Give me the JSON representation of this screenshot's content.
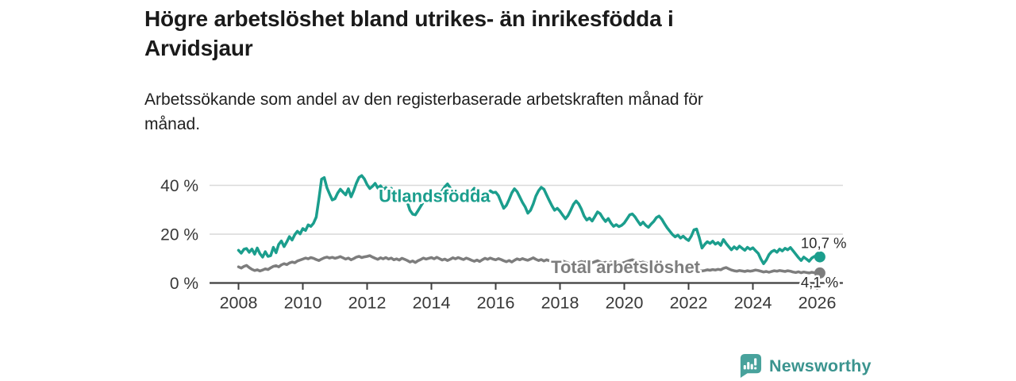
{
  "page": {
    "background": "#ffffff"
  },
  "header": {
    "title_lines": [
      "Högre arbetslöshet bland utrikes- än inrikesfödda i",
      "Arvidsjaur"
    ],
    "subtitle_lines": [
      "Arbetssökande som andel av den registerbaserade arbetskraften månad för",
      "månad."
    ]
  },
  "chart_data": {
    "type": "line",
    "title": "Högre arbetslöshet bland utrikes- än inrikesfödda i Arvidsjaur",
    "subtitle": "Arbetssökande som andel av den registerbaserade arbetskraften månad för månad.",
    "grid": "horizontal",
    "x": {
      "start_year": 2008,
      "start_month": 1,
      "step_months": 1
    },
    "x_ticks": [
      2008,
      2010,
      2012,
      2014,
      2016,
      2018,
      2020,
      2022,
      2024,
      2026
    ],
    "xlim": [
      2007.1,
      2026.8
    ],
    "ylim": [
      0,
      46
    ],
    "y_ticks": [
      {
        "value": 0,
        "label": "0 %"
      },
      {
        "value": 20,
        "label": "20 %"
      },
      {
        "value": 40,
        "label": "40 %"
      }
    ],
    "colors": {
      "grid": "#d9d9d9",
      "axis": "#3f3f3f",
      "tick_text": "#383838",
      "value_text": "#2b2b2b"
    },
    "series": [
      {
        "id": "utlandsfodda",
        "name": "Utlandsfödda",
        "color": "#1b9e8d",
        "end_value": 10.7,
        "end_label": "10,7 %",
        "end_label_offset": [
          -24,
          -11
        ],
        "label_pos": {
          "x_year": 2012.36,
          "y_pct": 33.2
        },
        "values": [
          13.4,
          12.2,
          13.8,
          14.1,
          12.6,
          13.9,
          11.8,
          14.3,
          12.0,
          10.6,
          12.8,
          10.9,
          11.2,
          14.6,
          12.4,
          15.8,
          17.2,
          14.9,
          16.8,
          19.0,
          17.6,
          19.8,
          21.2,
          20.1,
          22.3,
          21.5,
          23.8,
          23.2,
          24.5,
          27.0,
          34.5,
          42.5,
          43.2,
          39.0,
          36.5,
          34.0,
          34.5,
          36.8,
          38.4,
          37.2,
          36.1,
          38.6,
          35.3,
          37.8,
          40.9,
          43.3,
          44.0,
          42.6,
          40.3,
          38.7,
          39.6,
          40.8,
          38.9,
          39.8,
          38.2,
          39.1,
          37.6,
          38.8,
          37.2,
          36.4,
          37.8,
          36.4,
          35.2,
          33.1,
          29.8,
          28.2,
          27.9,
          29.6,
          31.4,
          33.2,
          34.6,
          35.4,
          36.8,
          35.6,
          37.2,
          36.1,
          37.8,
          39.4,
          40.6,
          39.0,
          37.2,
          36.0,
          36.8,
          35.8,
          36.4,
          37.6,
          36.2,
          37.4,
          38.8,
          37.0,
          35.6,
          36.6,
          35.0,
          36.2,
          37.8,
          37.0,
          37.2,
          35.8,
          33.1,
          30.6,
          31.8,
          34.2,
          36.9,
          38.6,
          37.4,
          35.2,
          33.0,
          31.2,
          28.6,
          29.8,
          32.4,
          35.6,
          37.8,
          39.2,
          38.4,
          36.1,
          33.8,
          31.6,
          29.8,
          30.6,
          29.4,
          27.8,
          26.3,
          27.6,
          29.8,
          32.2,
          33.6,
          32.4,
          30.2,
          27.4,
          25.8,
          26.6,
          25.4,
          27.2,
          29.1,
          28.4,
          26.6,
          25.2,
          26.4,
          24.6,
          23.2,
          23.9,
          23.1,
          23.6,
          24.6,
          26.2,
          27.9,
          28.3,
          27.1,
          25.4,
          23.8,
          24.9,
          23.6,
          22.8,
          24.1,
          25.2,
          26.8,
          27.4,
          26.1,
          24.3,
          22.6,
          21.2,
          19.8,
          18.9,
          19.6,
          18.4,
          19.2,
          18.1,
          17.4,
          19.2,
          21.8,
          22.1,
          18.6,
          14.3,
          15.8,
          16.9,
          16.2,
          17.1,
          15.9,
          16.6,
          15.4,
          17.8,
          16.2,
          14.9,
          13.6,
          14.8,
          13.9,
          15.1,
          14.2,
          13.4,
          14.6,
          13.8,
          14.4,
          13.2,
          12.1,
          9.8,
          7.9,
          9.4,
          11.6,
          12.8,
          13.4,
          12.6,
          13.9,
          13.1,
          14.2,
          13.6,
          14.5,
          13.2,
          11.8,
          10.4,
          9.2,
          10.6,
          9.8,
          8.9,
          10.2,
          10.9,
          10.5,
          10.7
        ]
      },
      {
        "id": "total-arbetsloshet",
        "name": "Total arbetslöshet",
        "color": "#7d7d7d",
        "end_value": 4.1,
        "end_label": "4,1 %",
        "end_label_offset": [
          -24,
          18
        ],
        "label_pos": {
          "x_year": 2017.72,
          "y_pct": 4.0
        },
        "values": [
          6.6,
          6.1,
          6.8,
          7.2,
          6.3,
          5.6,
          5.1,
          5.4,
          4.9,
          5.3,
          5.8,
          5.5,
          6.2,
          6.8,
          7.1,
          6.6,
          7.4,
          7.9,
          7.5,
          8.2,
          8.6,
          8.3,
          9.0,
          9.4,
          9.8,
          10.2,
          9.9,
          10.4,
          10.1,
          9.6,
          9.2,
          9.8,
          10.3,
          10.6,
          10.2,
          10.5,
          10.1,
          10.4,
          10.8,
          10.3,
          9.8,
          10.2,
          9.5,
          10.0,
          10.6,
          10.9,
          10.4,
          10.7,
          10.9,
          11.2,
          10.6,
          10.1,
          9.7,
          10.3,
          9.9,
          10.4,
          9.8,
          10.2,
          9.5,
          9.9,
          9.4,
          10.1,
          9.7,
          9.2,
          8.6,
          9.0,
          8.4,
          9.1,
          9.6,
          10.2,
          9.8,
          10.1,
          10.4,
          9.9,
          10.5,
          10.0,
          9.4,
          9.8,
          9.2,
          9.7,
          10.3,
          9.9,
          10.4,
          10.0,
          9.6,
          10.2,
          9.8,
          9.3,
          8.9,
          9.4,
          8.8,
          9.5,
          10.1,
          9.7,
          10.2,
          9.8,
          9.5,
          10.0,
          9.6,
          9.1,
          8.7,
          9.2,
          8.6,
          9.3,
          9.9,
          9.5,
          10.0,
          9.6,
          9.3,
          9.8,
          10.3,
          9.7,
          9.2,
          9.6,
          9.0,
          9.5,
          9.1,
          8.7,
          9.2,
          8.8,
          8.5,
          9.0,
          8.6,
          8.2,
          7.8,
          8.3,
          7.9,
          8.4,
          8.8,
          8.5,
          8.9,
          8.6,
          8.3,
          8.7,
          9.1,
          8.6,
          8.2,
          8.5,
          8.1,
          8.6,
          8.2,
          7.9,
          8.3,
          8.0,
          8.4,
          8.8,
          9.2,
          9.5,
          9.1,
          8.7,
          8.3,
          8.6,
          8.2,
          7.9,
          7.6,
          7.8,
          7.5,
          7.8,
          7.4,
          7.0,
          6.6,
          6.3,
          5.9,
          6.2,
          5.8,
          5.6,
          5.9,
          5.6,
          5.4,
          5.7,
          5.9,
          5.5,
          5.2,
          4.9,
          5.1,
          5.4,
          5.2,
          5.5,
          5.3,
          5.6,
          5.4,
          6.0,
          6.3,
          5.8,
          5.3,
          5.0,
          4.8,
          5.1,
          4.9,
          4.7,
          5.0,
          4.8,
          5.0,
          5.3,
          5.1,
          4.8,
          4.5,
          4.7,
          4.4,
          4.7,
          5.0,
          4.8,
          5.1,
          4.9,
          4.7,
          5.0,
          4.8,
          4.5,
          4.3,
          4.6,
          4.2,
          4.5,
          4.3,
          4.1,
          4.4,
          4.2,
          4.0,
          4.1
        ]
      }
    ]
  },
  "footer": {
    "brand": "Newsworthy",
    "brand_color": "#3b948f",
    "logo_icon_color": "#48a29c",
    "logo_icon": "bar-chart-speech-bubble-icon"
  }
}
